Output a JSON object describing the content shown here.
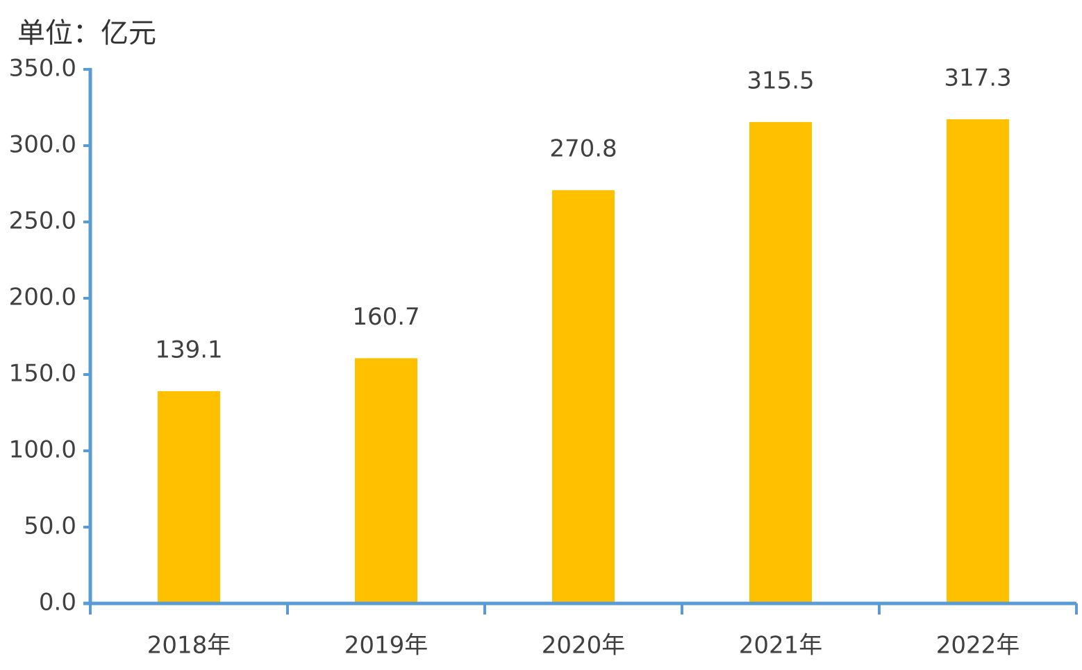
{
  "chart_data": {
    "type": "bar",
    "y_axis_label": "单位：亿元",
    "categories": [
      "2018年",
      "2019年",
      "2020年",
      "2021年",
      "2022年"
    ],
    "values": [
      139.1,
      160.7,
      270.8,
      315.5,
      317.3
    ],
    "color": "#ffc000",
    "ylim": [
      0,
      350
    ],
    "yticks": [
      {
        "value": 0,
        "label": "0.0"
      },
      {
        "value": 50,
        "label": "50.0"
      },
      {
        "value": 100,
        "label": "100.0"
      },
      {
        "value": 150,
        "label": "150.0"
      },
      {
        "value": 200,
        "label": "200.0"
      },
      {
        "value": 250,
        "label": "250.0"
      },
      {
        "value": 300,
        "label": "300.0"
      },
      {
        "value": 350,
        "label": "350.0"
      }
    ],
    "grid": false,
    "axis_color": "#5b9bd5"
  }
}
